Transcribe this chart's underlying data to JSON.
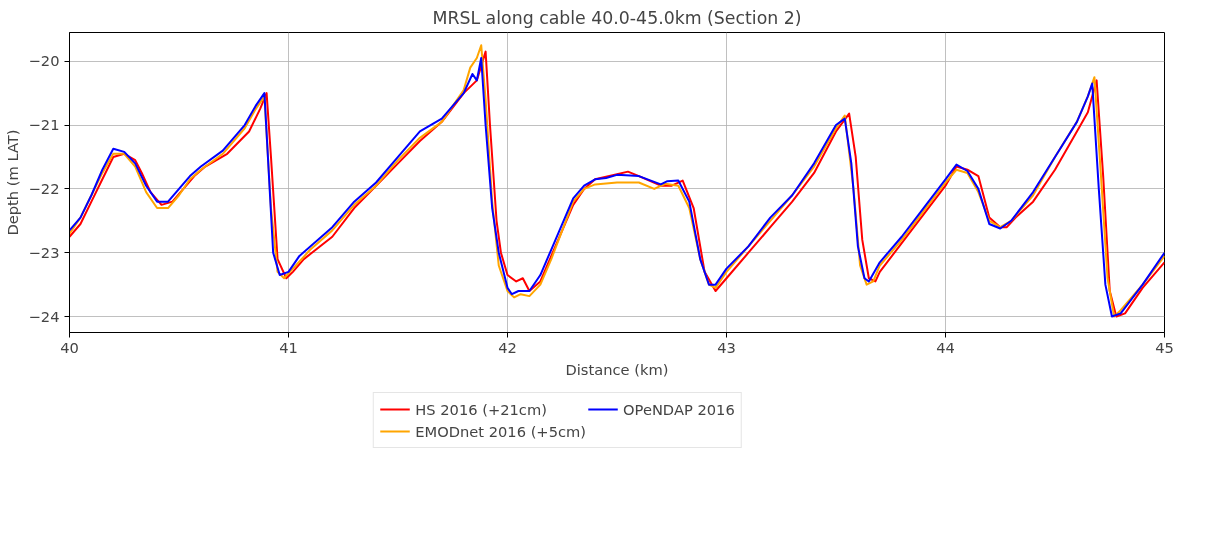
{
  "chart_data": {
    "type": "line",
    "title": "MRSL along cable 40.0-45.0km (Section 2)",
    "xlabel": "Distance (km)",
    "ylabel": "Depth (m LAT)",
    "xlim": [
      40,
      45
    ],
    "ylim": [
      -24.25,
      -19.55
    ],
    "xticks": [
      40,
      41,
      42,
      43,
      44,
      45
    ],
    "yticks": [
      {
        "value": -24,
        "label": "−24"
      },
      {
        "value": -23,
        "label": "−23"
      },
      {
        "value": -22,
        "label": "−22"
      },
      {
        "value": -21,
        "label": "−21"
      },
      {
        "value": -20,
        "label": "−20"
      }
    ],
    "grid": true,
    "legend": "bottom",
    "line_style": "solid",
    "marker": "none",
    "series": [
      {
        "name": "HS 2016 (+21cm)",
        "color": "#ff0000",
        "x": [
          40.0,
          40.05,
          40.1,
          40.15,
          40.2,
          40.25,
          40.3,
          40.33,
          40.37,
          40.42,
          40.47,
          40.52,
          40.57,
          40.62,
          40.72,
          40.82,
          40.87,
          40.9,
          40.92,
          40.95,
          40.99,
          41.02,
          41.07,
          41.2,
          41.3,
          41.4,
          41.5,
          41.6,
          41.7,
          41.8,
          41.86,
          41.9,
          41.92,
          41.95,
          41.97,
          42.0,
          42.04,
          42.07,
          42.1,
          42.15,
          42.2,
          42.3,
          42.35,
          42.4,
          42.5,
          42.55,
          42.6,
          42.7,
          42.75,
          42.8,
          42.85,
          42.9,
          42.95,
          43.0,
          43.1,
          43.2,
          43.3,
          43.4,
          43.5,
          43.56,
          43.59,
          43.62,
          43.65,
          43.68,
          43.7,
          43.8,
          43.9,
          44.0,
          44.05,
          44.1,
          44.15,
          44.2,
          44.25,
          44.28,
          44.32,
          44.4,
          44.5,
          44.6,
          44.65,
          44.69,
          44.72,
          44.75,
          44.78,
          44.82,
          44.9,
          45.0
        ],
        "values": [
          -22.75,
          -22.55,
          -22.2,
          -21.85,
          -21.5,
          -21.45,
          -21.55,
          -21.75,
          -22.05,
          -22.25,
          -22.2,
          -22.0,
          -21.8,
          -21.65,
          -21.45,
          -21.1,
          -20.75,
          -20.5,
          -21.5,
          -23.1,
          -23.4,
          -23.3,
          -23.1,
          -22.75,
          -22.3,
          -21.95,
          -21.6,
          -21.25,
          -20.95,
          -20.5,
          -20.3,
          -19.85,
          -21.0,
          -22.5,
          -23.0,
          -23.35,
          -23.45,
          -23.4,
          -23.6,
          -23.45,
          -23.05,
          -22.25,
          -22.0,
          -21.85,
          -21.77,
          -21.73,
          -21.8,
          -21.95,
          -21.95,
          -21.87,
          -22.3,
          -23.3,
          -23.6,
          -23.4,
          -23.0,
          -22.6,
          -22.2,
          -21.75,
          -21.1,
          -20.82,
          -21.5,
          -22.8,
          -23.4,
          -23.45,
          -23.3,
          -22.85,
          -22.4,
          -21.95,
          -21.65,
          -21.7,
          -21.8,
          -22.45,
          -22.6,
          -22.6,
          -22.45,
          -22.2,
          -21.7,
          -21.1,
          -20.8,
          -20.3,
          -21.8,
          -23.6,
          -24.0,
          -23.95,
          -23.55,
          -23.15
        ]
      },
      {
        "name": "EMODnet 2016 (+5cm)",
        "color": "#ffa500",
        "x": [
          40.0,
          40.05,
          40.1,
          40.15,
          40.2,
          40.25,
          40.3,
          40.35,
          40.4,
          40.45,
          40.5,
          40.55,
          40.6,
          40.7,
          40.8,
          40.85,
          40.89,
          40.92,
          40.95,
          40.98,
          41.02,
          41.1,
          41.2,
          41.3,
          41.4,
          41.5,
          41.6,
          41.7,
          41.8,
          41.83,
          41.86,
          41.88,
          41.9,
          41.93,
          41.96,
          42.0,
          42.03,
          42.06,
          42.1,
          42.15,
          42.2,
          42.3,
          42.35,
          42.4,
          42.5,
          42.6,
          42.67,
          42.72,
          42.78,
          42.83,
          42.88,
          42.92,
          42.95,
          43.0,
          43.1,
          43.2,
          43.3,
          43.4,
          43.5,
          43.54,
          43.58,
          43.61,
          43.64,
          43.67,
          43.7,
          43.8,
          43.9,
          44.0,
          44.05,
          44.1,
          44.15,
          44.2,
          44.25,
          44.3,
          44.4,
          44.5,
          44.6,
          44.65,
          44.68,
          44.71,
          44.74,
          44.77,
          44.8,
          44.9,
          45.0
        ],
        "values": [
          -22.7,
          -22.45,
          -22.1,
          -21.75,
          -21.45,
          -21.45,
          -21.65,
          -22.05,
          -22.3,
          -22.3,
          -22.1,
          -21.85,
          -21.7,
          -21.45,
          -21.05,
          -20.75,
          -20.55,
          -22.3,
          -23.3,
          -23.4,
          -23.25,
          -22.95,
          -22.65,
          -22.25,
          -21.95,
          -21.55,
          -21.2,
          -20.95,
          -20.45,
          -20.1,
          -19.95,
          -19.75,
          -20.6,
          -22.2,
          -23.2,
          -23.6,
          -23.7,
          -23.65,
          -23.68,
          -23.5,
          -23.1,
          -22.2,
          -22.0,
          -21.93,
          -21.9,
          -21.9,
          -22.0,
          -21.92,
          -21.95,
          -22.3,
          -23.1,
          -23.5,
          -23.55,
          -23.3,
          -22.9,
          -22.5,
          -22.1,
          -21.65,
          -21.05,
          -20.85,
          -22.0,
          -23.2,
          -23.5,
          -23.45,
          -23.2,
          -22.8,
          -22.35,
          -21.9,
          -21.7,
          -21.75,
          -22.05,
          -22.5,
          -22.6,
          -22.5,
          -22.1,
          -21.5,
          -20.95,
          -20.55,
          -20.25,
          -21.8,
          -23.4,
          -24.0,
          -23.9,
          -23.5,
          -23.05
        ]
      },
      {
        "name": "OPeNDAP 2016",
        "color": "#0000ff",
        "x": [
          40.0,
          40.05,
          40.1,
          40.15,
          40.2,
          40.25,
          40.3,
          40.35,
          40.4,
          40.45,
          40.5,
          40.55,
          40.6,
          40.7,
          40.8,
          40.85,
          40.89,
          40.93,
          40.96,
          41.0,
          41.05,
          41.2,
          41.3,
          41.4,
          41.5,
          41.6,
          41.7,
          41.8,
          41.84,
          41.86,
          41.88,
          41.9,
          41.93,
          41.96,
          42.0,
          42.02,
          42.05,
          42.1,
          42.15,
          42.2,
          42.3,
          42.35,
          42.4,
          42.45,
          42.5,
          42.6,
          42.7,
          42.73,
          42.78,
          42.83,
          42.88,
          42.92,
          42.95,
          43.0,
          43.1,
          43.2,
          43.3,
          43.4,
          43.5,
          43.54,
          43.57,
          43.6,
          43.63,
          43.65,
          43.7,
          43.8,
          43.9,
          44.0,
          44.05,
          44.1,
          44.15,
          44.2,
          44.25,
          44.3,
          44.4,
          44.5,
          44.6,
          44.65,
          44.67,
          44.7,
          44.73,
          44.76,
          44.8,
          44.9,
          45.0
        ],
        "values": [
          -22.65,
          -22.45,
          -22.1,
          -21.7,
          -21.37,
          -21.42,
          -21.6,
          -21.95,
          -22.2,
          -22.2,
          -22.0,
          -21.8,
          -21.65,
          -21.4,
          -21.0,
          -20.7,
          -20.5,
          -23.0,
          -23.35,
          -23.3,
          -23.05,
          -22.6,
          -22.2,
          -21.9,
          -21.5,
          -21.1,
          -20.9,
          -20.5,
          -20.2,
          -20.3,
          -19.95,
          -21.0,
          -22.3,
          -23.0,
          -23.55,
          -23.65,
          -23.6,
          -23.6,
          -23.35,
          -22.95,
          -22.15,
          -21.95,
          -21.85,
          -21.83,
          -21.78,
          -21.8,
          -21.93,
          -21.88,
          -21.87,
          -22.2,
          -23.1,
          -23.5,
          -23.5,
          -23.25,
          -22.9,
          -22.45,
          -22.1,
          -21.6,
          -21.0,
          -20.9,
          -21.6,
          -22.9,
          -23.4,
          -23.45,
          -23.15,
          -22.75,
          -22.3,
          -21.85,
          -21.62,
          -21.72,
          -22.0,
          -22.55,
          -22.62,
          -22.5,
          -22.05,
          -21.5,
          -20.95,
          -20.55,
          -20.35,
          -22.0,
          -23.5,
          -24.0,
          -23.95,
          -23.5,
          -23.0
        ]
      }
    ]
  }
}
